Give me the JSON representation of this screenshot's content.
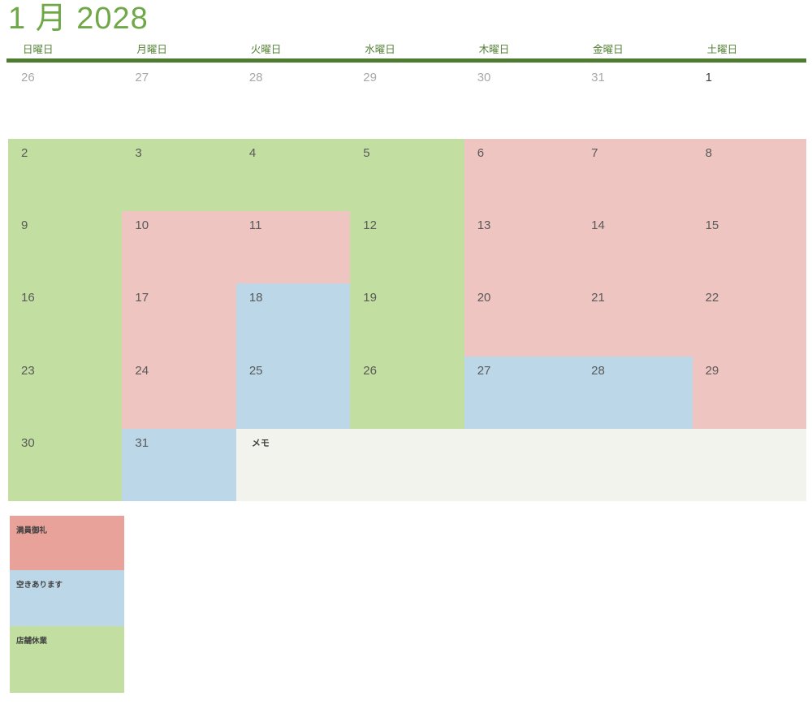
{
  "title": "1 月 2028",
  "weekday_headers": [
    "日曜日",
    "月曜日",
    "火曜日",
    "水曜日",
    "木曜日",
    "金曜日",
    "土曜日"
  ],
  "calendar": {
    "leading_week": [
      {
        "day": "26",
        "muted": true
      },
      {
        "day": "27",
        "muted": true
      },
      {
        "day": "28",
        "muted": true
      },
      {
        "day": "29",
        "muted": true
      },
      {
        "day": "30",
        "muted": true
      },
      {
        "day": "31",
        "muted": true
      },
      {
        "day": "1",
        "muted": false
      }
    ],
    "weeks": [
      {
        "cells": [
          {
            "day": "2",
            "status": "closed"
          },
          {
            "day": "3",
            "status": "closed"
          },
          {
            "day": "4",
            "status": "closed"
          },
          {
            "day": "5",
            "status": "closed"
          },
          {
            "day": "6",
            "status": "full"
          },
          {
            "day": "7",
            "status": "full"
          },
          {
            "day": "8",
            "status": "full"
          }
        ]
      },
      {
        "cells": [
          {
            "day": "9",
            "status": "closed"
          },
          {
            "day": "10",
            "status": "full"
          },
          {
            "day": "11",
            "status": "full"
          },
          {
            "day": "12",
            "status": "closed"
          },
          {
            "day": "13",
            "status": "full"
          },
          {
            "day": "14",
            "status": "full"
          },
          {
            "day": "15",
            "status": "full"
          }
        ]
      },
      {
        "cells": [
          {
            "day": "16",
            "status": "closed"
          },
          {
            "day": "17",
            "status": "full"
          },
          {
            "day": "18",
            "status": "open"
          },
          {
            "day": "19",
            "status": "closed"
          },
          {
            "day": "20",
            "status": "full"
          },
          {
            "day": "21",
            "status": "full"
          },
          {
            "day": "22",
            "status": "full"
          }
        ]
      },
      {
        "cells": [
          {
            "day": "23",
            "status": "closed"
          },
          {
            "day": "24",
            "status": "full"
          },
          {
            "day": "25",
            "status": "open"
          },
          {
            "day": "26",
            "status": "closed"
          },
          {
            "day": "27",
            "status": "open"
          },
          {
            "day": "28",
            "status": "open"
          },
          {
            "day": "29",
            "status": "full"
          }
        ]
      },
      {
        "cells": [
          {
            "day": "30",
            "status": "closed"
          },
          {
            "day": "31",
            "status": "open"
          }
        ],
        "memo": true
      }
    ],
    "memo_label": "メモ"
  },
  "legend": [
    {
      "label": "満員御礼",
      "status": "full",
      "color": "#e8a29a"
    },
    {
      "label": "空きあります",
      "status": "open",
      "color": "#bcd8e8"
    },
    {
      "label": "店舗休業",
      "status": "closed",
      "color": "#c2dfa1"
    }
  ],
  "status_colors": {
    "full": "#eec5c1",
    "open": "#bcd8e8",
    "closed": "#c2dfa1"
  },
  "theme": {
    "title_green": "#6fa846",
    "weekday_green": "#538135",
    "divider_green": "#4d7b2f",
    "memo_bg": "#f3f3ee",
    "muted_date": "#a8a8a8",
    "date_color": "#595959",
    "dark_text": "#3f3f3f"
  }
}
